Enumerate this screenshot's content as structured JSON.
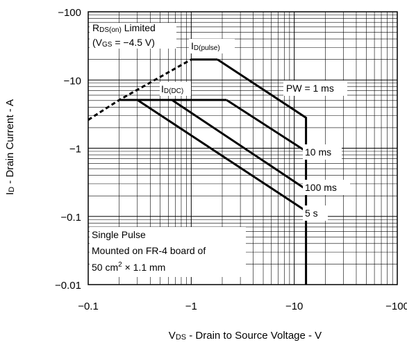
{
  "chart_data": {
    "type": "line",
    "title": "",
    "xlabel": "V DS - Drain to Source Voltage - V",
    "xlabel_parts": {
      "symbol": "V",
      "sub": "DS",
      "rest": " - Drain to Source Voltage - V"
    },
    "ylabel_parts": {
      "symbol": "I",
      "sub": "D",
      "rest": " - Drain Current - A"
    },
    "x_scale": "log",
    "y_scale": "log",
    "xlim": [
      0.1,
      100
    ],
    "ylim": [
      0.01,
      100
    ],
    "x_ticks": [
      {
        "value": 0.1,
        "label": "−0.1"
      },
      {
        "value": 1,
        "label": "−1"
      },
      {
        "value": 10,
        "label": "−10"
      },
      {
        "value": 100,
        "label": "−100"
      }
    ],
    "y_ticks": [
      {
        "value": 100,
        "label": "−100"
      },
      {
        "value": 10,
        "label": "−10"
      },
      {
        "value": 1,
        "label": "−1"
      },
      {
        "value": 0.1,
        "label": "−0.1"
      },
      {
        "value": 0.01,
        "label": "−0.01"
      }
    ],
    "grid": true,
    "series": [
      {
        "name": "RDS(on) Limited",
        "style": "dashed",
        "points": [
          [
            0.1,
            2.6
          ],
          [
            0.2,
            5.1
          ],
          [
            1.0,
            20
          ]
        ]
      },
      {
        "name": "ID(pulse)",
        "style": "solid",
        "points": [
          [
            1.0,
            20
          ],
          [
            1.8,
            20
          ]
        ]
      },
      {
        "name": "PW = 1 ms",
        "style": "solid",
        "points": [
          [
            1.8,
            20
          ],
          [
            13,
            2.8
          ],
          [
            13,
            0.01
          ]
        ]
      },
      {
        "name": "ID(DC)",
        "style": "solid",
        "points": [
          [
            0.2,
            5.1
          ],
          [
            2.2,
            5.1
          ]
        ]
      },
      {
        "name": "10 ms",
        "style": "solid",
        "points": [
          [
            2.2,
            5.1
          ],
          [
            13,
            0.9
          ]
        ]
      },
      {
        "name": "100 ms",
        "style": "solid",
        "points": [
          [
            0.65,
            5.1
          ],
          [
            13,
            0.25
          ]
        ]
      },
      {
        "name": "5 s",
        "style": "solid",
        "points": [
          [
            0.3,
            5.1
          ],
          [
            13,
            0.12
          ]
        ]
      }
    ],
    "annotations": {
      "rds_line1": {
        "symbol": "R",
        "sub": "DS(on)",
        "rest": " Limited"
      },
      "rds_line2": {
        "pre": "(V",
        "sub": "GS",
        "rest": " = −4.5 V)"
      },
      "id_pulse": {
        "symbol": "I",
        "sub": "D(pulse)"
      },
      "id_dc": {
        "symbol": "I",
        "sub": "D(DC)"
      },
      "pw_1ms": "PW = 1 ms",
      "pw_10ms": "10 ms",
      "pw_100ms": "100 ms",
      "pw_5s": "5 s",
      "note_line1": "Single Pulse",
      "note_line2": "Mounted on FR-4 board of",
      "note_line3": {
        "pre": "50 cm",
        "sup": "2",
        "rest": " × 1.1 mm"
      }
    }
  }
}
